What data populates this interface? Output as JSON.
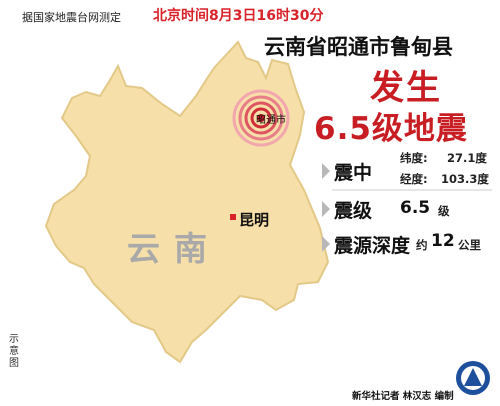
{
  "header": {
    "source": "据国家地震台网测定",
    "datetime": "北京时间8月3日16时30分",
    "region": "云南省昭通市鲁甸县",
    "headline_line1": "发生",
    "headline_line2": "6.5级地震"
  },
  "info": {
    "epicenter_label": "震中",
    "latitude_label": "纬度:",
    "latitude_value": "27.1度",
    "longitude_label": "经度:",
    "longitude_value": "103.3度",
    "magnitude_label": "震级",
    "magnitude_value": "6.5",
    "magnitude_unit": "级",
    "depth_label": "震源深度",
    "depth_prefix": "约",
    "depth_value": "12",
    "depth_unit": "公里"
  },
  "map": {
    "province_label": "云南",
    "capital_label": "昆明",
    "epicenter_city_label": "昭通市",
    "schematic_note": "示意图",
    "colors": {
      "province_fill": "#f6dfa8",
      "province_stroke": "#e2c988",
      "ring_colors": [
        "#f2a7ae",
        "#e87f88",
        "#dd5560",
        "#cf2d3a",
        "#c01a28"
      ],
      "capital_marker": "#d9232a",
      "headline": "#c81e23"
    }
  },
  "footer": {
    "credit": "新华社记者 林汉志 编制",
    "logo": "xinhua-logo-icon"
  }
}
